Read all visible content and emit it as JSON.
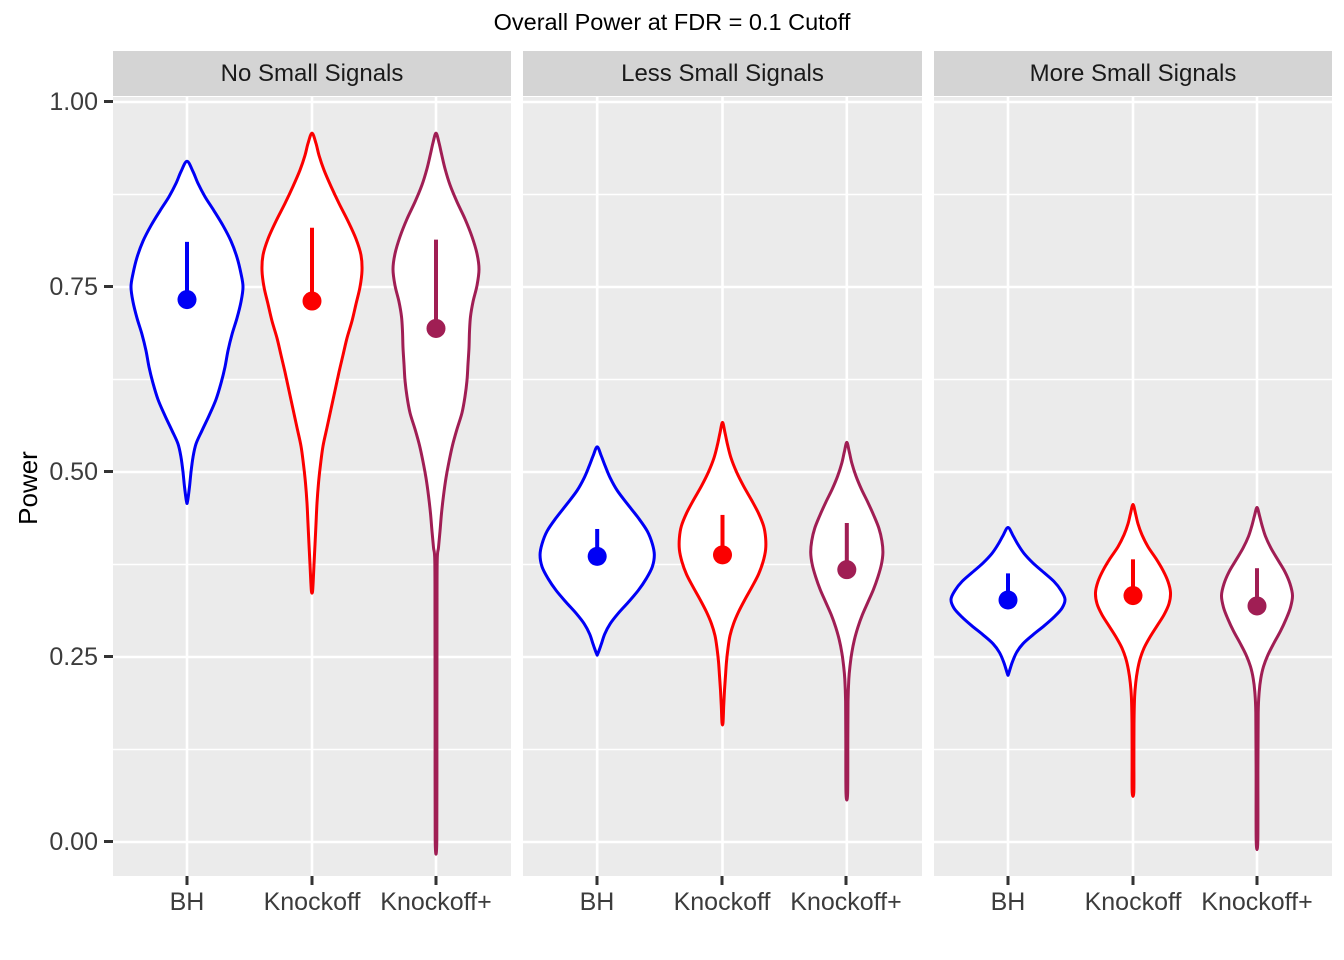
{
  "chart_data": {
    "type": "violin",
    "title": "Overall Power at FDR = 0.1 Cutoff",
    "xlabel": "",
    "ylabel": "Power",
    "ylim": [
      0,
      1
    ],
    "legend": "none",
    "grid": "on",
    "categories": [
      "BH",
      "Knockoff",
      "Knockoff+"
    ],
    "y_axis": {
      "tick_values": [
        1.0,
        0.75,
        0.5,
        0.25,
        0.0
      ],
      "tick_labels": [
        "1.00",
        "0.75",
        "0.50",
        "0.25",
        "0.00"
      ],
      "major_gridlines": [
        0.0,
        0.25,
        0.5,
        0.75,
        1.0
      ],
      "minor_gridlines": [
        0.125,
        0.375,
        0.625,
        0.875
      ]
    },
    "colors": {
      "BH": "#0000F5",
      "Knockoff": "#FB0000",
      "Knockoff+": "#A01E54",
      "panel_background": "#EBEBEB",
      "strip_background": "#D4D4D4",
      "gridline": "#FFFFFF",
      "violin_fill": "#FFFFFF",
      "axis_text": "#3C3C3C",
      "tick_mark": "#333333"
    },
    "facets": [
      {
        "label": "No Small Signals",
        "violins": [
          {
            "method": "BH",
            "color": "#0000F5",
            "median": 0.733,
            "interval_top": 0.811,
            "min": 0.46,
            "max": 0.92,
            "profile": [
              [
                0.92,
                0
              ],
              [
                0.906,
                6
              ],
              [
                0.89,
                11
              ],
              [
                0.872,
                18
              ],
              [
                0.853,
                27
              ],
              [
                0.833,
                36
              ],
              [
                0.812,
                44
              ],
              [
                0.79,
                50
              ],
              [
                0.768,
                54
              ],
              [
                0.75,
                56
              ],
              [
                0.73,
                54
              ],
              [
                0.708,
                50
              ],
              [
                0.686,
                45
              ],
              [
                0.664,
                41
              ],
              [
                0.642,
                38
              ],
              [
                0.62,
                34
              ],
              [
                0.598,
                29
              ],
              [
                0.576,
                22
              ],
              [
                0.556,
                15
              ],
              [
                0.538,
                9
              ],
              [
                0.52,
                6
              ],
              [
                0.5,
                4
              ],
              [
                0.48,
                2.5
              ],
              [
                0.46,
                0.5
              ]
            ]
          },
          {
            "method": "Knockoff",
            "color": "#FB0000",
            "median": 0.731,
            "interval_top": 0.83,
            "min": 0.338,
            "max": 0.958,
            "profile": [
              [
                0.958,
                0
              ],
              [
                0.944,
                4
              ],
              [
                0.928,
                7
              ],
              [
                0.908,
                12
              ],
              [
                0.886,
                19
              ],
              [
                0.863,
                27
              ],
              [
                0.839,
                36
              ],
              [
                0.815,
                44
              ],
              [
                0.793,
                49
              ],
              [
                0.772,
                50
              ],
              [
                0.75,
                48
              ],
              [
                0.727,
                44
              ],
              [
                0.704,
                40
              ],
              [
                0.681,
                35
              ],
              [
                0.658,
                31
              ],
              [
                0.635,
                27
              ],
              [
                0.61,
                23
              ],
              [
                0.585,
                19
              ],
              [
                0.56,
                15
              ],
              [
                0.535,
                11
              ],
              [
                0.51,
                8.5
              ],
              [
                0.485,
                6.5
              ],
              [
                0.458,
                5
              ],
              [
                0.43,
                4
              ],
              [
                0.402,
                3
              ],
              [
                0.375,
                2
              ],
              [
                0.352,
                1.2
              ],
              [
                0.338,
                0.5
              ]
            ]
          },
          {
            "method": "Knockoff+",
            "color": "#A01E54",
            "median": 0.694,
            "interval_top": 0.814,
            "min": 0.0,
            "max": 0.958,
            "profile": [
              [
                0.958,
                0
              ],
              [
                0.945,
                3
              ],
              [
                0.93,
                5.5
              ],
              [
                0.91,
                9
              ],
              [
                0.888,
                14
              ],
              [
                0.865,
                21
              ],
              [
                0.842,
                29
              ],
              [
                0.818,
                36
              ],
              [
                0.795,
                41
              ],
              [
                0.774,
                43
              ],
              [
                0.752,
                41
              ],
              [
                0.73,
                37
              ],
              [
                0.71,
                34.5
              ],
              [
                0.69,
                33.5
              ],
              [
                0.668,
                33
              ],
              [
                0.646,
                32
              ],
              [
                0.624,
                31
              ],
              [
                0.602,
                29
              ],
              [
                0.58,
                26
              ],
              [
                0.558,
                21
              ],
              [
                0.536,
                16.5
              ],
              [
                0.514,
                13
              ],
              [
                0.492,
                10
              ],
              [
                0.468,
                7.5
              ],
              [
                0.444,
                5.5
              ],
              [
                0.42,
                4
              ],
              [
                0.398,
                2.5
              ],
              [
                0.38,
                1.2
              ],
              [
                0.3,
                1.0
              ],
              [
                0.15,
                0.9
              ],
              [
                0.002,
                0.8
              ]
            ]
          }
        ]
      },
      {
        "label": "Less Small Signals",
        "violins": [
          {
            "method": "BH",
            "color": "#0000F5",
            "median": 0.386,
            "interval_top": 0.423,
            "min": 0.254,
            "max": 0.534,
            "profile": [
              [
                0.534,
                0
              ],
              [
                0.522,
                4
              ],
              [
                0.508,
                8
              ],
              [
                0.492,
                13
              ],
              [
                0.475,
                20
              ],
              [
                0.457,
                30
              ],
              [
                0.438,
                41
              ],
              [
                0.42,
                50
              ],
              [
                0.403,
                55
              ],
              [
                0.388,
                57
              ],
              [
                0.372,
                55
              ],
              [
                0.356,
                49
              ],
              [
                0.34,
                41
              ],
              [
                0.324,
                31
              ],
              [
                0.309,
                21
              ],
              [
                0.295,
                13
              ],
              [
                0.281,
                7.5
              ],
              [
                0.267,
                4
              ],
              [
                0.254,
                0.5
              ]
            ]
          },
          {
            "method": "Knockoff",
            "color": "#FB0000",
            "median": 0.388,
            "interval_top": 0.442,
            "min": 0.161,
            "max": 0.567,
            "profile": [
              [
                0.567,
                0
              ],
              [
                0.553,
                2.5
              ],
              [
                0.537,
                5
              ],
              [
                0.519,
                8.5
              ],
              [
                0.5,
                14
              ],
              [
                0.481,
                21
              ],
              [
                0.462,
                29
              ],
              [
                0.444,
                36
              ],
              [
                0.427,
                41
              ],
              [
                0.411,
                43
              ],
              [
                0.395,
                43
              ],
              [
                0.379,
                40.5
              ],
              [
                0.362,
                36
              ],
              [
                0.345,
                29.5
              ],
              [
                0.328,
                22.5
              ],
              [
                0.311,
                16
              ],
              [
                0.295,
                11
              ],
              [
                0.279,
                7.5
              ],
              [
                0.262,
                5.5
              ],
              [
                0.244,
                4
              ],
              [
                0.225,
                3
              ],
              [
                0.205,
                2
              ],
              [
                0.184,
                1.2
              ],
              [
                0.161,
                0.5
              ]
            ]
          },
          {
            "method": "Knockoff+",
            "color": "#A01E54",
            "median": 0.368,
            "interval_top": 0.431,
            "min": 0.066,
            "max": 0.54,
            "profile": [
              [
                0.54,
                0
              ],
              [
                0.527,
                2.5
              ],
              [
                0.512,
                5
              ],
              [
                0.495,
                9
              ],
              [
                0.477,
                14.5
              ],
              [
                0.459,
                21
              ],
              [
                0.441,
                27
              ],
              [
                0.424,
                32
              ],
              [
                0.407,
                35
              ],
              [
                0.391,
                36
              ],
              [
                0.375,
                34.5
              ],
              [
                0.358,
                31
              ],
              [
                0.341,
                26.5
              ],
              [
                0.324,
                21
              ],
              [
                0.307,
                15.5
              ],
              [
                0.29,
                11
              ],
              [
                0.273,
                7.5
              ],
              [
                0.256,
                5
              ],
              [
                0.238,
                3.2
              ],
              [
                0.22,
                2
              ],
              [
                0.19,
                1.2
              ],
              [
                0.14,
                1
              ],
              [
                0.066,
                0.8
              ]
            ]
          }
        ]
      },
      {
        "label": "More Small Signals",
        "violins": [
          {
            "method": "BH",
            "color": "#0000F5",
            "median": 0.327,
            "interval_top": 0.363,
            "min": 0.227,
            "max": 0.425,
            "profile": [
              [
                0.425,
                0
              ],
              [
                0.414,
                5
              ],
              [
                0.402,
                10
              ],
              [
                0.39,
                16
              ],
              [
                0.377,
                25
              ],
              [
                0.364,
                36
              ],
              [
                0.352,
                46
              ],
              [
                0.34,
                53
              ],
              [
                0.328,
                57
              ],
              [
                0.316,
                54
              ],
              [
                0.304,
                46
              ],
              [
                0.292,
                36
              ],
              [
                0.28,
                25
              ],
              [
                0.268,
                15
              ],
              [
                0.256,
                8.5
              ],
              [
                0.242,
                4
              ],
              [
                0.227,
                0.5
              ]
            ]
          },
          {
            "method": "Knockoff",
            "color": "#FB0000",
            "median": 0.333,
            "interval_top": 0.382,
            "min": 0.067,
            "max": 0.456,
            "profile": [
              [
                0.456,
                0
              ],
              [
                0.444,
                2.5
              ],
              [
                0.43,
                5
              ],
              [
                0.415,
                9
              ],
              [
                0.399,
                15
              ],
              [
                0.383,
                23
              ],
              [
                0.367,
                30
              ],
              [
                0.352,
                35
              ],
              [
                0.337,
                37.5
              ],
              [
                0.322,
                36
              ],
              [
                0.307,
                31
              ],
              [
                0.292,
                24
              ],
              [
                0.277,
                17
              ],
              [
                0.262,
                11
              ],
              [
                0.247,
                7
              ],
              [
                0.232,
                4.5
              ],
              [
                0.216,
                2.8
              ],
              [
                0.196,
                1.6
              ],
              [
                0.16,
                1
              ],
              [
                0.11,
                0.9
              ],
              [
                0.067,
                0.8
              ]
            ]
          },
          {
            "method": "Knockoff+",
            "color": "#A01E54",
            "median": 0.319,
            "interval_top": 0.37,
            "min": 0.0,
            "max": 0.452,
            "profile": [
              [
                0.452,
                0
              ],
              [
                0.441,
                2.5
              ],
              [
                0.428,
                5
              ],
              [
                0.413,
                8.5
              ],
              [
                0.397,
                14
              ],
              [
                0.381,
                21
              ],
              [
                0.365,
                28
              ],
              [
                0.349,
                33
              ],
              [
                0.333,
                35.5
              ],
              [
                0.317,
                33.5
              ],
              [
                0.301,
                29
              ],
              [
                0.285,
                23.5
              ],
              [
                0.269,
                17
              ],
              [
                0.253,
                11
              ],
              [
                0.237,
                6.5
              ],
              [
                0.221,
                3.8
              ],
              [
                0.203,
                2.2
              ],
              [
                0.175,
                1.2
              ],
              [
                0.1,
                0.9
              ],
              [
                0.002,
                0.8
              ]
            ]
          }
        ]
      }
    ]
  }
}
